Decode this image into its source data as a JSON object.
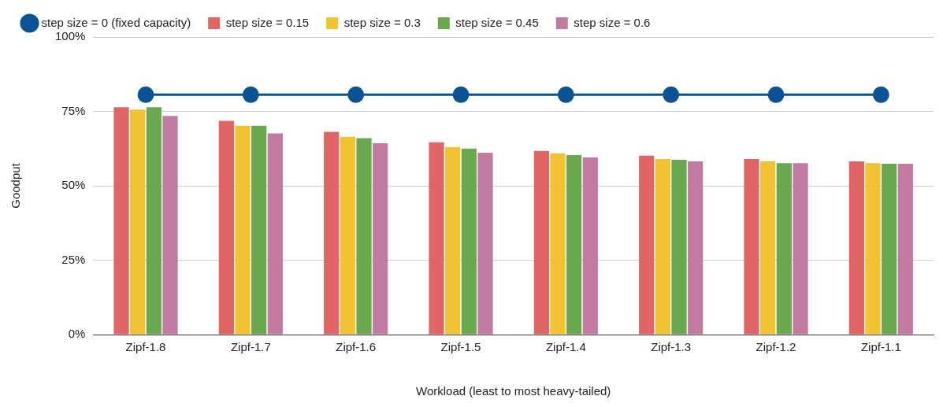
{
  "chart_data": {
    "type": "bar",
    "xlabel": "Workload (least to most heavy-tailed)",
    "ylabel": "Goodput",
    "categories": [
      "Zipf-1.8",
      "Zipf-1.7",
      "Zipf-1.6",
      "Zipf-1.5",
      "Zipf-1.4",
      "Zipf-1.3",
      "Zipf-1.2",
      "Zipf-1.1"
    ],
    "series": [
      {
        "name": "step size = 0.15",
        "color": "#e06666",
        "values": [
          76.4,
          71.8,
          68.1,
          64.6,
          61.7,
          60.1,
          59.0,
          58.2
        ]
      },
      {
        "name": "step size = 0.3",
        "color": "#f1c232",
        "values": [
          75.6,
          70.2,
          66.5,
          63.0,
          60.9,
          59.0,
          58.2,
          57.6
        ]
      },
      {
        "name": "step size = 0.45",
        "color": "#6aa84f",
        "values": [
          76.4,
          70.2,
          66.0,
          62.5,
          60.3,
          58.7,
          57.6,
          57.4
        ]
      },
      {
        "name": "step size = 0.6",
        "color": "#c27ba0",
        "values": [
          73.5,
          67.6,
          64.3,
          61.1,
          59.5,
          58.2,
          57.6,
          57.4
        ]
      },
      {
        "name": "step size = 0 (fixed capacity)",
        "color": "#0b5394",
        "type": "line",
        "marker": "circle",
        "values": [
          80.6,
          80.6,
          80.6,
          80.6,
          80.6,
          80.6,
          80.6,
          80.6
        ]
      }
    ],
    "ylim": [
      0,
      100
    ],
    "yticks": [
      {
        "value": 0,
        "label": "0%"
      },
      {
        "value": 25,
        "label": "25%"
      },
      {
        "value": 50,
        "label": "50%"
      },
      {
        "value": 75,
        "label": "75%"
      },
      {
        "value": 100,
        "label": "100%"
      }
    ],
    "grid": "y",
    "legend": "top"
  }
}
